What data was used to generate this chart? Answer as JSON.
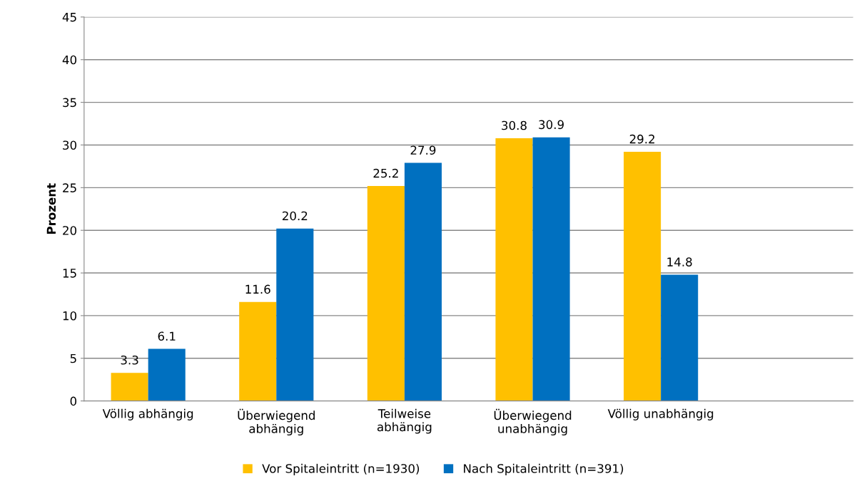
{
  "chart_data": {
    "type": "bar",
    "ylabel": "Prozent",
    "categories": [
      "Völlig abhängig",
      "Überwiegend\nabhängig",
      "Teilweise\nabhängig",
      "Überwiegend\nunabhängig",
      "Völlig unabhängig",
      null
    ],
    "series": [
      {
        "name": "Vor Spitaleintritt (n=1930)",
        "color": "#ffc000",
        "values": [
          3.3,
          11.6,
          25.2,
          30.8,
          29.2,
          null
        ]
      },
      {
        "name": "Nach Spitaleintritt (n=391)",
        "color": "#0070c0",
        "values": [
          6.1,
          20.2,
          27.9,
          30.9,
          14.8,
          null
        ]
      }
    ],
    "ylim": [
      0,
      45
    ],
    "yticks": [
      0,
      5,
      10,
      15,
      20,
      25,
      30,
      35,
      40,
      45
    ],
    "grid": "y",
    "legend": "bottom",
    "data_labels": true
  }
}
